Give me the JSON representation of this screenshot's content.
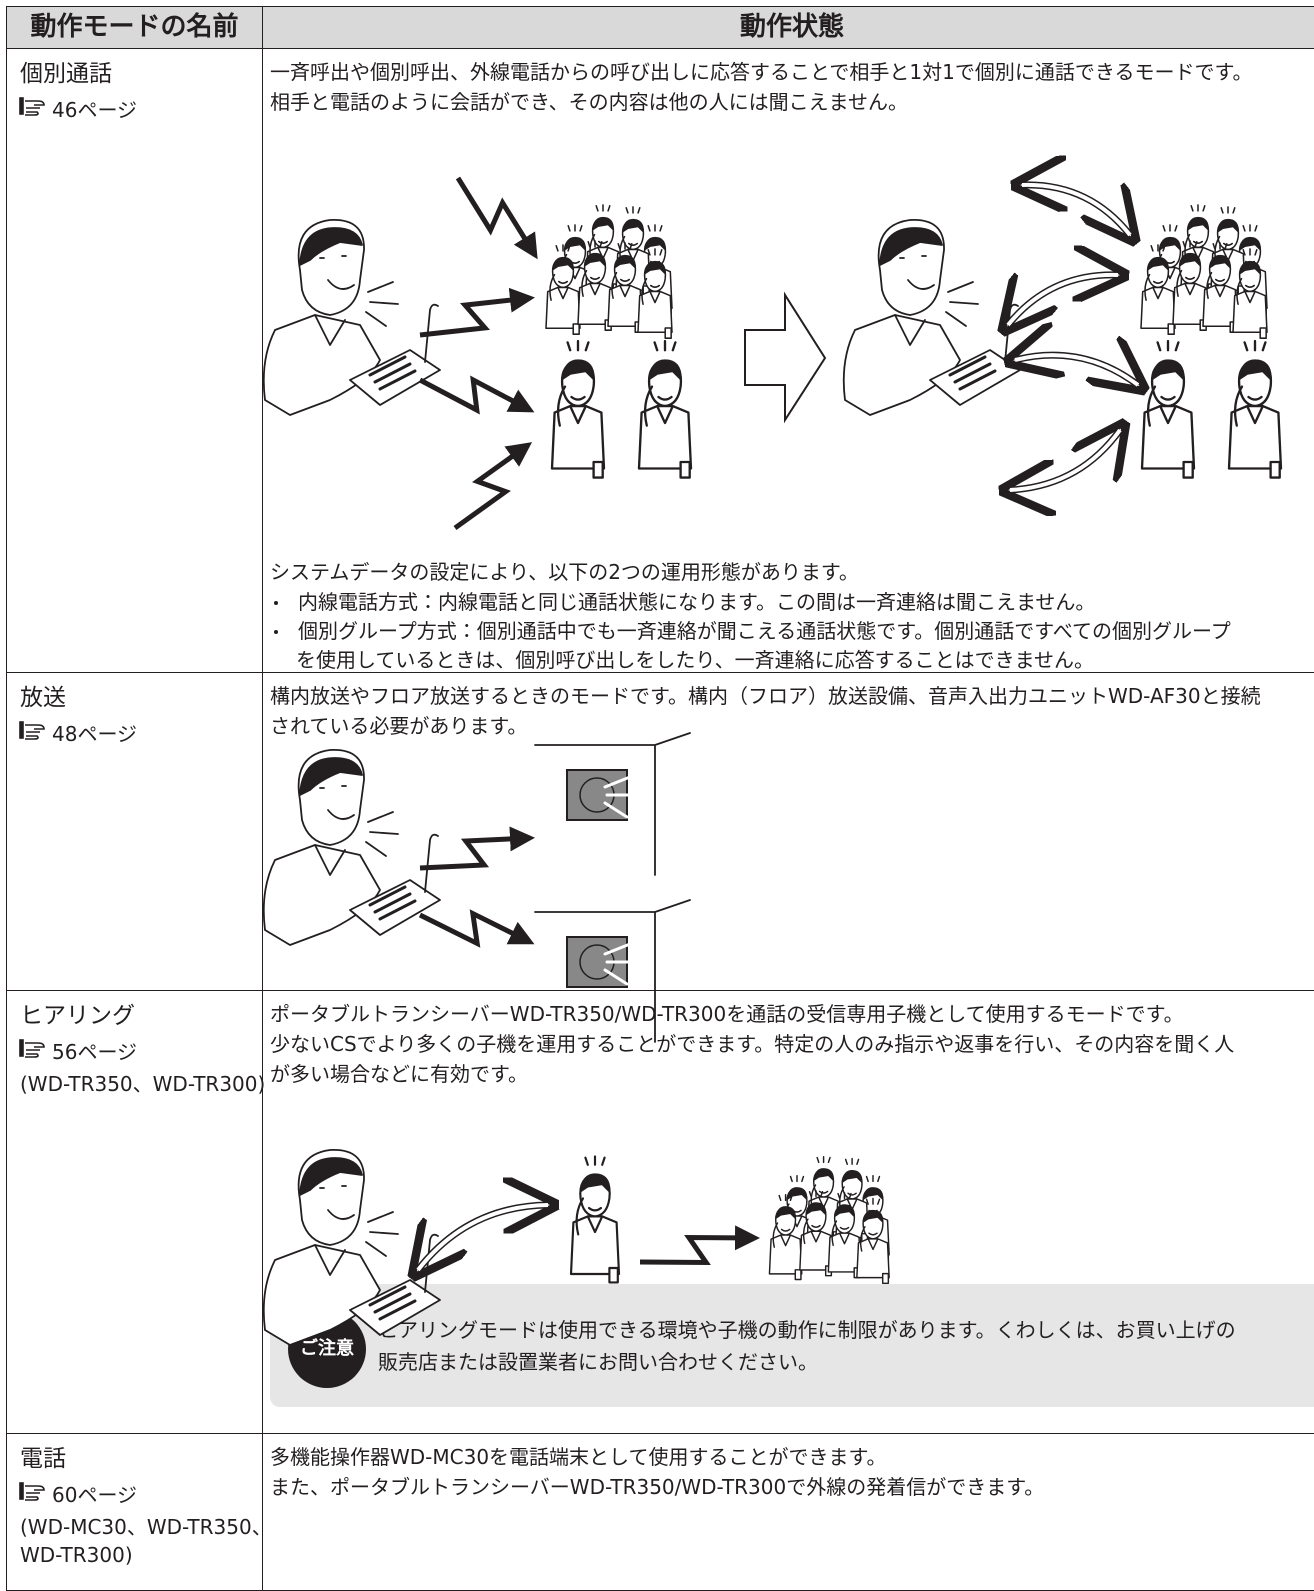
{
  "table": {
    "headers": [
      "動作モードの名前",
      "動作状態"
    ],
    "rows": [
      {
        "name": "個別通話",
        "ref": "46ページ",
        "desc": [
          "一斉呼出や個別呼出、外線電話からの呼び出しに応答することで相手と1対1で個別に通話できるモードです。",
          "相手と電話のように会話ができ、その内容は他の人には聞こえません。"
        ],
        "intro": "システムデータの設定により、以下の2つの運用形態があります。",
        "bullets": [
          [
            "内線電話方式：内線電話と同じ通話状態になります。この間は一斉連絡は聞こえません。"
          ],
          [
            "個別グループ方式：個別通話中でも一斉連絡が聞こえる通話状態です。個別通話ですべての個別グループ",
            "を使用しているときは、個別呼び出しをしたり、一斉連絡に応答することはできません。"
          ]
        ]
      },
      {
        "name": "放送",
        "ref": "48ページ",
        "desc": [
          "構内放送やフロア放送するときのモードです。構内（フロア）放送設備、音声入出力ユニットWD-AF30と接続",
          "されている必要があります。"
        ]
      },
      {
        "name": "ヒアリング",
        "ref": "56ページ",
        "models": [
          "(WD-TR350、WD-TR300)"
        ],
        "desc": [
          "ポータブルトランシーバーWD-TR350/WD-TR300を通話の受信専用子機として使用するモードです。",
          "少ないCSでより多くの子機を運用することができます。特定の人のみ指示や返事を行い、その内容を聞く人",
          "が多い場合などに有効です。"
        ],
        "caution": {
          "label": "ご注意",
          "lines": [
            "ヒアリングモードは使用できる環境や子機の動作に制限があります。くわしくは、お買い上げの",
            "販売店または設置業者にお問い合わせください。"
          ]
        }
      },
      {
        "name": "電話",
        "ref": "60ページ",
        "models": [
          "(WD-MC30、WD-TR350、",
          "WD-TR300)"
        ],
        "desc": [
          "多機能操作器WD-MC30を電話端末として使用することができます。",
          "また、ポータブルトランシーバーWD-TR350/WD-TR300で外線の発着信ができます。"
        ]
      }
    ]
  }
}
